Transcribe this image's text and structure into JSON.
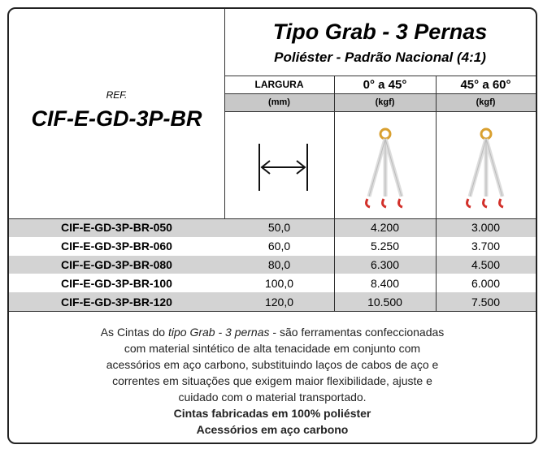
{
  "header": {
    "title": "Tipo Grab - 3 Pernas",
    "subtitle": "Poliéster - Padrão Nacional (4:1)",
    "ref_label": "REF.",
    "ref_code": "CIF-E-GD-3P-BR"
  },
  "table": {
    "columns": [
      "LARGURA",
      "0° a 45°",
      "45° a 60°"
    ],
    "units": [
      "(mm)",
      "(kgf)",
      "(kgf)"
    ],
    "rows": [
      [
        "CIF-E-GD-3P-BR-050",
        "50,0",
        "4.200",
        "3.000"
      ],
      [
        "CIF-E-GD-3P-BR-060",
        "60,0",
        "5.250",
        "3.700"
      ],
      [
        "CIF-E-GD-3P-BR-080",
        "80,0",
        "6.300",
        "4.500"
      ],
      [
        "CIF-E-GD-3P-BR-100",
        "100,0",
        "8.400",
        "6.000"
      ],
      [
        "CIF-E-GD-3P-BR-120",
        "120,0",
        "10.500",
        "7.500"
      ]
    ]
  },
  "description": {
    "intro": "As Cintas do",
    "emphasis": "tipo Grab - 3 pernas",
    "first_line_end": "- são ferramentas confeccionadas",
    "lines": [
      "com material sintético de alta tenacidade em conjunto com",
      "acessórios em aço carbono, substituindo laços de cabos de aço e",
      "correntes em situações que exigem maior flexibilidade, ajuste e",
      "cuidado com o material transportado."
    ],
    "bold_lines": [
      "Cintas fabricadas em 100% poliéster",
      "Acessórios em aço carbono"
    ]
  }
}
